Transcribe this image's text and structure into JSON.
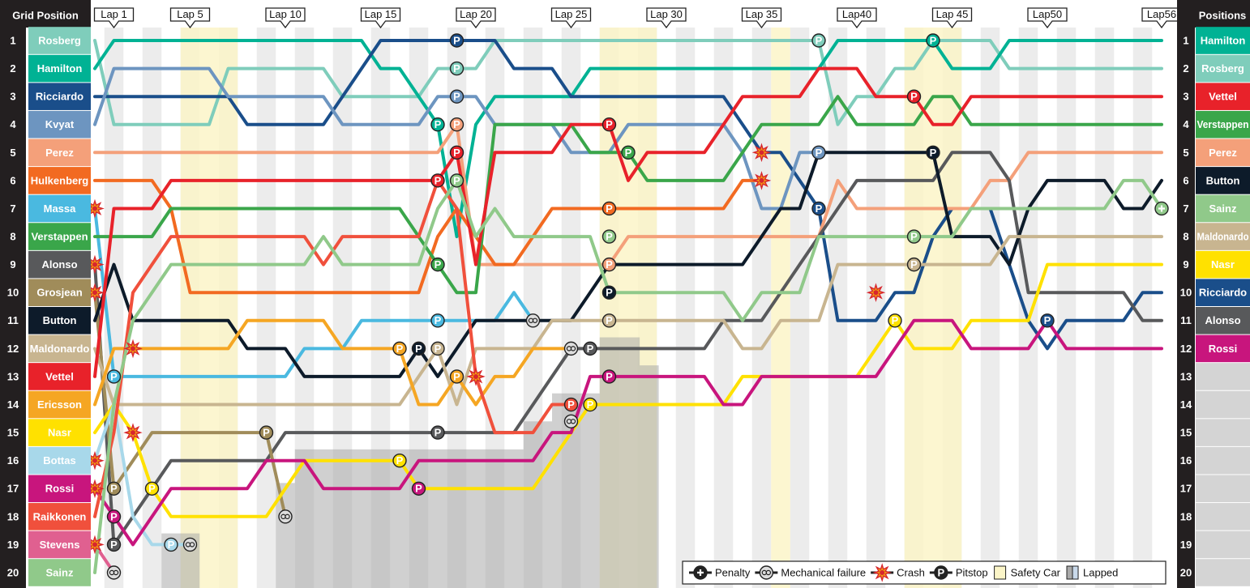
{
  "chart_data": {
    "type": "bump",
    "left_header": "Grid Position",
    "right_header": "Positions",
    "xlim": [
      0,
      56
    ],
    "ylim": [
      1,
      20
    ],
    "positions": [
      1,
      2,
      3,
      4,
      5,
      6,
      7,
      8,
      9,
      10,
      11,
      12,
      13,
      14,
      15,
      16,
      17,
      18,
      19,
      20
    ],
    "lap_labels": [
      {
        "value": 1,
        "label": "Lap 1"
      },
      {
        "value": 5,
        "label": "Lap 5"
      },
      {
        "value": 10,
        "label": "Lap 10"
      },
      {
        "value": 15,
        "label": "Lap 15"
      },
      {
        "value": 20,
        "label": "Lap 20"
      },
      {
        "value": 25,
        "label": "Lap 25"
      },
      {
        "value": 30,
        "label": "Lap 30"
      },
      {
        "value": 35,
        "label": "Lap 35"
      },
      {
        "value": 40,
        "label": "Lap40"
      },
      {
        "value": 45,
        "label": "Lap 45"
      },
      {
        "value": 50,
        "label": "Lap50"
      },
      {
        "value": 56,
        "label": "Lap56"
      }
    ],
    "series": [
      {
        "name": "Rosberg",
        "color": "#7fcdbb",
        "x": [
          0,
          1,
          6,
          7,
          12,
          13,
          17,
          18,
          20,
          21,
          38,
          39,
          40,
          41,
          42,
          43,
          44,
          47,
          48,
          56
        ],
        "values": [
          1,
          4,
          4,
          2,
          2,
          3,
          3,
          2,
          2,
          1,
          1,
          4,
          3,
          3,
          2,
          2,
          1,
          1,
          2,
          2
        ]
      },
      {
        "name": "Hamilton",
        "color": "#00b294",
        "x": [
          0,
          1,
          14,
          15,
          16,
          17,
          18,
          19,
          20,
          21,
          25,
          26,
          38,
          39,
          44,
          45,
          47,
          48,
          56
        ],
        "values": [
          2,
          1,
          1,
          2,
          2,
          3,
          4,
          8,
          4,
          3,
          3,
          2,
          2,
          1,
          1,
          2,
          2,
          1,
          1
        ]
      },
      {
        "name": "Ricciardo",
        "color": "#1a4e8a",
        "x": [
          0,
          7,
          8,
          12,
          13,
          14,
          15,
          21,
          22,
          24,
          25,
          33,
          34,
          35,
          36,
          37,
          38,
          39,
          41,
          42,
          43,
          44,
          45,
          47,
          48,
          49,
          50,
          51,
          54,
          55,
          56
        ],
        "values": [
          3,
          3,
          4,
          4,
          3,
          2,
          1,
          1,
          2,
          2,
          3,
          3,
          4,
          5,
          5,
          6,
          7,
          11,
          11,
          10,
          10,
          8,
          7,
          7,
          9,
          11,
          12,
          11,
          11,
          10,
          10
        ]
      },
      {
        "name": "Kvyat",
        "color": "#6d95c0",
        "x": [
          0,
          1,
          6,
          7,
          12,
          13,
          17,
          18,
          20,
          21,
          24,
          25,
          27,
          28,
          33,
          34,
          35,
          36,
          37,
          38
        ],
        "values": [
          4,
          2,
          2,
          3,
          3,
          4,
          4,
          3,
          3,
          4,
          4,
          5,
          5,
          4,
          4,
          5,
          7,
          7,
          5,
          5
        ]
      },
      {
        "name": "Perez",
        "color": "#f4a07a",
        "x": [
          0,
          18,
          19,
          20,
          27,
          28,
          38,
          39,
          40,
          46,
          47,
          48,
          49,
          56
        ],
        "values": [
          5,
          5,
          4,
          9,
          9,
          8,
          8,
          6,
          7,
          7,
          6,
          6,
          5,
          5
        ]
      },
      {
        "name": "Hulkenberg",
        "color": "#f26a21",
        "x": [
          0,
          3,
          4,
          5,
          17,
          18,
          19,
          20,
          21,
          22,
          23,
          24,
          33,
          34,
          35
        ],
        "values": [
          6,
          6,
          7,
          10,
          10,
          8,
          7,
          8,
          9,
          9,
          8,
          7,
          7,
          6,
          6
        ]
      },
      {
        "name": "Massa",
        "color": "#4ab9e0",
        "x": [
          0,
          1,
          2,
          10,
          11,
          13,
          14,
          21,
          22,
          23
        ],
        "values": [
          7,
          13,
          13,
          13,
          12,
          12,
          11,
          11,
          10,
          11
        ]
      },
      {
        "name": "Verstappen",
        "color": "#3aa64a",
        "x": [
          0,
          3,
          4,
          16,
          17,
          18,
          19,
          20,
          21,
          25,
          26,
          27,
          28,
          29,
          33,
          34,
          35,
          38,
          39,
          40,
          43,
          44,
          45,
          46,
          56
        ],
        "values": [
          8,
          8,
          7,
          7,
          8,
          9,
          10,
          10,
          4,
          4,
          5,
          5,
          5,
          6,
          6,
          5,
          4,
          4,
          3,
          4,
          4,
          3,
          3,
          4,
          4
        ]
      },
      {
        "name": "Alonso",
        "color": "#58595b",
        "x": [
          0,
          1,
          2,
          3,
          4,
          9,
          10,
          22,
          23,
          24,
          25,
          32,
          33,
          35,
          36,
          37,
          38,
          39,
          40,
          44,
          45,
          47,
          48,
          49,
          54,
          55,
          56
        ],
        "values": [
          9,
          19,
          18,
          17,
          16,
          16,
          15,
          15,
          14,
          13,
          12,
          12,
          11,
          11,
          10,
          9,
          8,
          7,
          6,
          6,
          5,
          5,
          6,
          10,
          10,
          11,
          11
        ]
      },
      {
        "name": "Grosjean",
        "color": "#a08c5a",
        "x": [
          0,
          1,
          2,
          3,
          9,
          10
        ],
        "values": [
          10,
          17,
          16,
          15,
          15,
          18
        ]
      },
      {
        "name": "Button",
        "color": "#0d1b2a",
        "x": [
          0,
          1,
          2,
          7,
          8,
          10,
          11,
          16,
          17,
          18,
          19,
          20,
          25,
          26,
          27,
          34,
          35,
          36,
          37,
          38,
          44,
          45,
          47,
          48,
          49,
          50,
          53,
          54,
          55,
          56
        ],
        "values": [
          11,
          9,
          11,
          11,
          12,
          12,
          13,
          13,
          12,
          13,
          12,
          11,
          11,
          10,
          9,
          9,
          8,
          7,
          7,
          5,
          5,
          8,
          8,
          9,
          7,
          6,
          6,
          7,
          7,
          6
        ]
      },
      {
        "name": "Maldonardo",
        "color": "#c8b590",
        "x": [
          0,
          1,
          2,
          16,
          17,
          18,
          19,
          20,
          23,
          24,
          33,
          34,
          35,
          36,
          38,
          39,
          47,
          48,
          56
        ],
        "values": [
          12,
          14,
          14,
          14,
          13,
          12,
          14,
          12,
          12,
          11,
          11,
          12,
          12,
          11,
          11,
          9,
          9,
          8,
          8
        ]
      },
      {
        "name": "Vettel",
        "color": "#e8222a",
        "x": [
          0,
          1,
          3,
          4,
          18,
          19,
          20,
          21,
          24,
          25,
          27,
          28,
          29,
          32,
          33,
          34,
          37,
          38,
          40,
          41,
          43,
          44,
          45,
          46,
          56
        ],
        "values": [
          13,
          7,
          7,
          6,
          6,
          5,
          9,
          5,
          5,
          4,
          4,
          6,
          5,
          5,
          4,
          3,
          3,
          2,
          2,
          3,
          3,
          4,
          4,
          3,
          3
        ]
      },
      {
        "name": "Ericsson",
        "color": "#f5a623",
        "x": [
          0,
          1,
          7,
          8,
          12,
          13,
          16,
          17,
          18,
          19,
          20,
          21,
          22,
          23,
          25
        ],
        "values": [
          14,
          12,
          12,
          11,
          11,
          12,
          12,
          14,
          14,
          13,
          14,
          13,
          13,
          12,
          12
        ]
      },
      {
        "name": "Nasr",
        "color": "#ffe100",
        "x": [
          0,
          1,
          2,
          3,
          4,
          9,
          10,
          11,
          16,
          17,
          23,
          24,
          25,
          26,
          33,
          34,
          40,
          41,
          42,
          43,
          45,
          46,
          49,
          50,
          56
        ],
        "values": [
          15,
          14,
          15,
          17,
          18,
          18,
          17,
          16,
          16,
          17,
          17,
          16,
          15,
          14,
          14,
          13,
          13,
          12,
          11,
          12,
          12,
          11,
          11,
          9,
          9
        ]
      },
      {
        "name": "Bottas",
        "color": "#a8d8ea",
        "x": [
          0,
          1,
          2,
          3,
          5
        ],
        "values": [
          16,
          14,
          18,
          19,
          19
        ]
      },
      {
        "name": "Rossi",
        "color": "#c8157d",
        "x": [
          0,
          1,
          2,
          4,
          8,
          9,
          11,
          12,
          16,
          17,
          23,
          24,
          25,
          26,
          32,
          33,
          34,
          35,
          41,
          42,
          43,
          45,
          46,
          49,
          50,
          51,
          56
        ],
        "values": [
          17,
          18,
          19,
          17,
          17,
          16,
          16,
          17,
          17,
          16,
          16,
          15,
          15,
          13,
          13,
          14,
          14,
          13,
          13,
          12,
          11,
          11,
          12,
          12,
          11,
          12,
          12
        ]
      },
      {
        "name": "Raikkonen",
        "color": "#f0503c",
        "x": [
          0,
          1,
          2,
          3,
          4,
          11,
          12,
          13,
          17,
          18,
          19,
          20,
          21,
          23,
          24,
          25
        ],
        "values": [
          18,
          15,
          10,
          9,
          8,
          8,
          9,
          8,
          8,
          6,
          7,
          13,
          15,
          15,
          14,
          14
        ]
      },
      {
        "name": "Stevens",
        "color": "#e06090",
        "x": [
          0,
          1
        ],
        "values": [
          19,
          20
        ]
      },
      {
        "name": "Sainz",
        "color": "#90c98a",
        "x": [
          0,
          1,
          2,
          3,
          4,
          11,
          12,
          13,
          17,
          18,
          19,
          20,
          21,
          22,
          26,
          27,
          33,
          34,
          35,
          37,
          38,
          45,
          46,
          53,
          54,
          55,
          56
        ],
        "values": [
          20,
          14,
          11,
          10,
          9,
          9,
          8,
          9,
          9,
          7,
          6,
          8,
          7,
          8,
          8,
          10,
          10,
          11,
          10,
          10,
          8,
          8,
          7,
          7,
          6,
          6,
          7
        ]
      }
    ],
    "results": [
      "Hamilton",
      "Rosberg",
      "Vettel",
      "Verstappen",
      "Perez",
      "Button",
      "Sainz",
      "Maldonardo",
      "Nasr",
      "Ricciardo",
      "Alonso",
      "Rossi"
    ],
    "pit_symbol": "P",
    "pitstops": [
      [
        1,
        18,
        4
      ],
      [
        1,
        44,
        1
      ],
      [
        0,
        19,
        2
      ],
      [
        0,
        38,
        1
      ],
      [
        2,
        19,
        1
      ],
      [
        2,
        38,
        7
      ],
      [
        2,
        50,
        11
      ],
      [
        3,
        19,
        3
      ],
      [
        3,
        38,
        5
      ],
      [
        4,
        19,
        4
      ],
      [
        4,
        27,
        9
      ],
      [
        5,
        27,
        7
      ],
      [
        12,
        18,
        6
      ],
      [
        12,
        19,
        5
      ],
      [
        12,
        27,
        4
      ],
      [
        12,
        43,
        3
      ],
      [
        7,
        18,
        9
      ],
      [
        7,
        28,
        5
      ],
      [
        19,
        19,
        6
      ],
      [
        19,
        27,
        8
      ],
      [
        19,
        43,
        8
      ],
      [
        6,
        1,
        13
      ],
      [
        6,
        18,
        11
      ],
      [
        10,
        17,
        12
      ],
      [
        10,
        27,
        10
      ],
      [
        10,
        44,
        5
      ],
      [
        8,
        1,
        19
      ],
      [
        8,
        18,
        15
      ],
      [
        8,
        26,
        12
      ],
      [
        9,
        1,
        17
      ],
      [
        9,
        9,
        15
      ],
      [
        11,
        18,
        12
      ],
      [
        11,
        27,
        11
      ],
      [
        11,
        43,
        9
      ],
      [
        13,
        16,
        12
      ],
      [
        13,
        19,
        13
      ],
      [
        14,
        3,
        17
      ],
      [
        14,
        16,
        16
      ],
      [
        14,
        26,
        14
      ],
      [
        14,
        42,
        11
      ],
      [
        16,
        1,
        18
      ],
      [
        16,
        17,
        17
      ],
      [
        16,
        27,
        13
      ],
      [
        17,
        25,
        14
      ],
      [
        15,
        4,
        19
      ]
    ],
    "crashes": [
      [
        6,
        0,
        7
      ],
      [
        8,
        0,
        9
      ],
      [
        9,
        0,
        10
      ],
      [
        15,
        0,
        16
      ],
      [
        16,
        0,
        17
      ],
      [
        18,
        0,
        19
      ],
      [
        13,
        2,
        12
      ],
      [
        14,
        2,
        15
      ],
      [
        17,
        20,
        13
      ],
      [
        5,
        35,
        6
      ],
      [
        3,
        35,
        5
      ],
      [
        2,
        41,
        10
      ]
    ],
    "mechanical": [
      [
        18,
        1,
        20
      ],
      [
        15,
        5,
        19
      ],
      [
        9,
        10,
        18
      ],
      [
        6,
        23,
        11
      ],
      [
        13,
        25,
        12
      ],
      [
        17,
        25,
        14.6
      ]
    ],
    "penalties": [
      [
        19,
        56,
        7
      ]
    ],
    "safety_car": [
      [
        4.5,
        7.5
      ],
      [
        26.5,
        29.5
      ],
      [
        35.5,
        36.5
      ],
      [
        42.5,
        45.5
      ]
    ],
    "lapped": [
      [
        3.5,
        5.5,
        18.6
      ],
      [
        9.5,
        10.5,
        16.8
      ],
      [
        10.5,
        22.5,
        15.6
      ],
      [
        22.5,
        24,
        14.6
      ],
      [
        24,
        26.5,
        13.6
      ],
      [
        26.5,
        28.6,
        11.6
      ],
      [
        28.6,
        29.6,
        12.6
      ]
    ],
    "legend": [
      "Penalty",
      "Mechanical failure",
      "Crash",
      "Pitstop",
      "Safety Car",
      "Lapped"
    ]
  }
}
